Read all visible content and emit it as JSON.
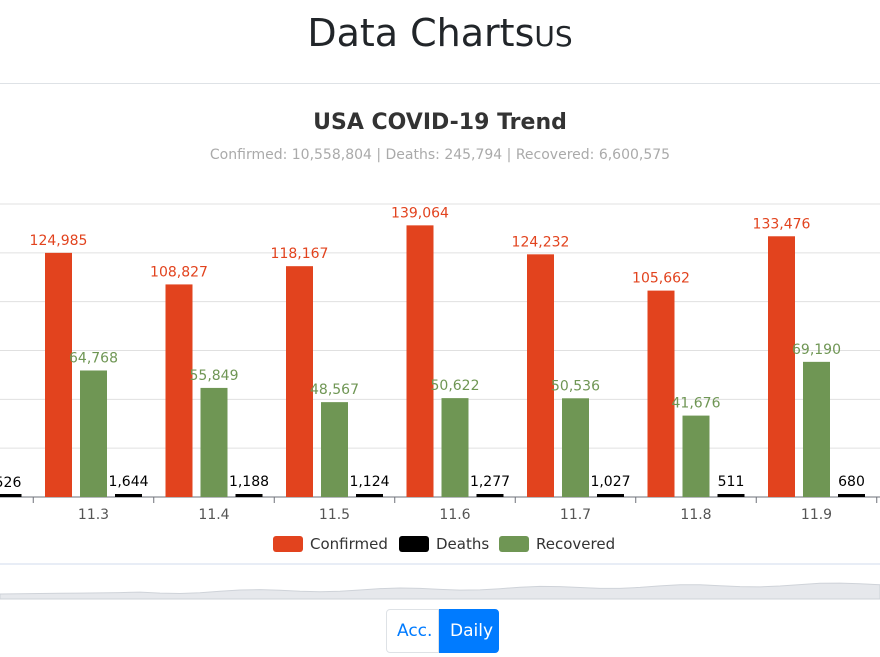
{
  "page": {
    "title_main": "Data Charts",
    "title_suffix": "US"
  },
  "buttons": {
    "acc_label": "Acc.",
    "daily_label": "Daily"
  },
  "colors": {
    "confirmed": "#e2431e",
    "deaths": "#000000",
    "recovered": "#6f9654",
    "accent": "#007bff"
  },
  "chart_data": {
    "type": "bar",
    "title": "USA COVID-19 Trend",
    "subtitle": "Confirmed: 10,558,804 | Deaths: 245,794 | Recovered: 6,600,575",
    "categories": [
      "11.3",
      "11.4",
      "11.5",
      "11.6",
      "11.7",
      "11.8",
      "11.9"
    ],
    "series": [
      {
        "name": "Confirmed",
        "color": "#e2431e",
        "values": [
          124985,
          108827,
          118167,
          139064,
          124232,
          105662,
          133476
        ]
      },
      {
        "name": "Deaths",
        "color": "#000000",
        "values": [
          1644,
          1188,
          1124,
          1277,
          1027,
          511,
          680
        ]
      },
      {
        "name": "Recovered",
        "color": "#6f9654",
        "values": [
          64768,
          55849,
          48567,
          50622,
          50536,
          41676,
          69190
        ]
      }
    ],
    "partial_left": {
      "deaths_label": "526",
      "deaths": 526
    },
    "ylim": [
      0,
      150000
    ],
    "grid": true,
    "legend_position": "bottom",
    "legend": [
      "Confirmed",
      "Deaths",
      "Recovered"
    ]
  }
}
